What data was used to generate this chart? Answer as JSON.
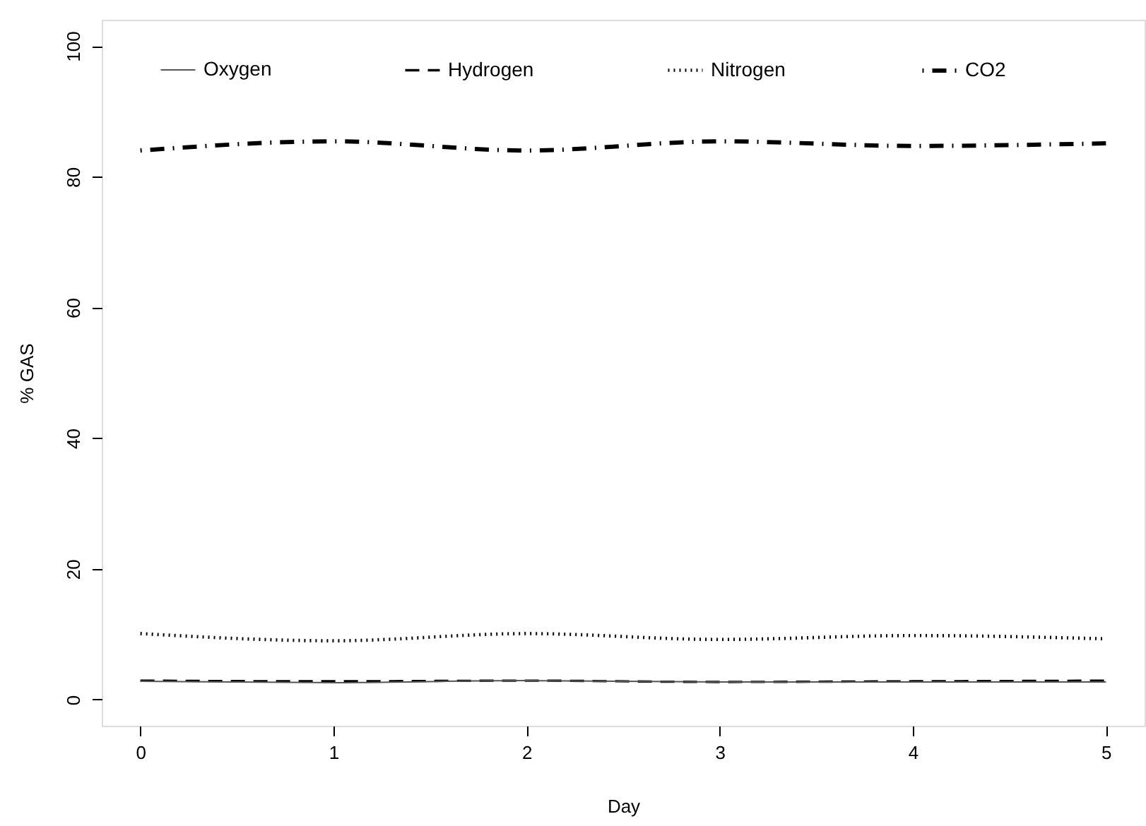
{
  "chart_data": {
    "type": "line",
    "xlabel": "Day",
    "ylabel": "% GAS",
    "x": [
      0,
      1,
      2,
      3,
      4,
      5
    ],
    "xlim": [
      -0.2,
      5.2
    ],
    "xticks": [
      0,
      1,
      2,
      3,
      4,
      5
    ],
    "ylim": [
      -4,
      104
    ],
    "yticks": [
      0,
      20,
      40,
      60,
      80,
      100
    ],
    "grid": false,
    "legend": "top",
    "marker": "none",
    "series": [
      {
        "name": "Oxygen",
        "color": "#555555",
        "line_style": "solid",
        "values": [
          2.8,
          2.6,
          2.9,
          2.7,
          2.7,
          2.7
        ]
      },
      {
        "name": "Hydrogen",
        "color": "#000000",
        "line_style": "dashed",
        "values": [
          2.9,
          2.8,
          2.9,
          2.7,
          2.8,
          2.9
        ]
      },
      {
        "name": "Nitrogen",
        "color": "#000000",
        "line_style": "dotted",
        "values": [
          10.1,
          9.0,
          10.1,
          9.2,
          9.8,
          9.3
        ]
      },
      {
        "name": "CO2",
        "color": "#000000",
        "line_style": "dashdot",
        "values": [
          84.0,
          85.4,
          84.0,
          85.4,
          84.7,
          85.1
        ]
      }
    ]
  }
}
